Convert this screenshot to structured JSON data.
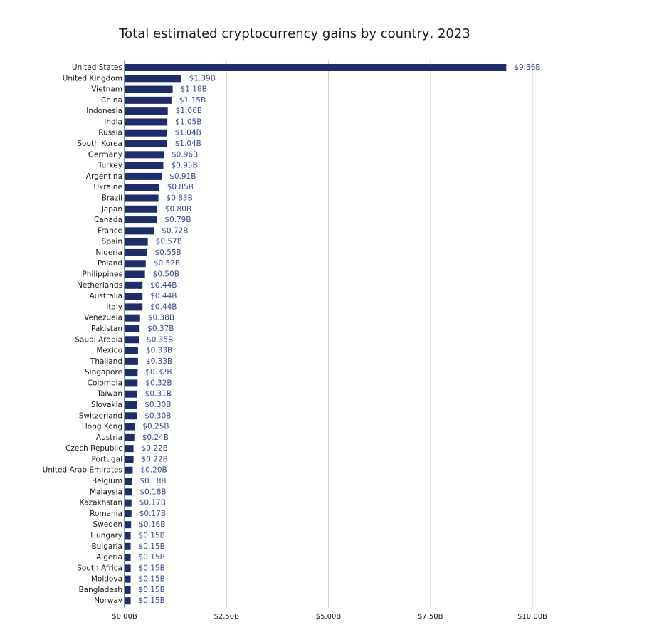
{
  "chart_data": {
    "type": "bar",
    "orientation": "horizontal",
    "title": "Total estimated cryptocurrency gains by country, 2023",
    "categories": [
      "United States",
      "United Kingdom",
      "Vietnam",
      "China",
      "Indonesia",
      "India",
      "Russia",
      "South Korea",
      "Germany",
      "Turkey",
      "Argentina",
      "Ukraine",
      "Brazil",
      "Japan",
      "Canada",
      "France",
      "Spain",
      "Nigeria",
      "Poland",
      "Philippines",
      "Netherlands",
      "Australia",
      "Italy",
      "Venezuela",
      "Pakistan",
      "Saudi Arabia",
      "Mexico",
      "Thailand",
      "Singapore",
      "Colombia",
      "Taiwan",
      "Slovakia",
      "Switzerland",
      "Hong Kong",
      "Austria",
      "Czech Republic",
      "Portugal",
      "United Arab Emirates",
      "Belgium",
      "Malaysia",
      "Kazakhstan",
      "Romania",
      "Sweden",
      "Hungary",
      "Bulgaria",
      "Algeria",
      "South Africa",
      "Moldova",
      "Bangladesh",
      "Norway"
    ],
    "values": [
      9.36,
      1.39,
      1.18,
      1.15,
      1.06,
      1.05,
      1.04,
      1.04,
      0.96,
      0.95,
      0.91,
      0.85,
      0.83,
      0.8,
      0.79,
      0.72,
      0.57,
      0.55,
      0.52,
      0.5,
      0.44,
      0.44,
      0.44,
      0.38,
      0.37,
      0.35,
      0.33,
      0.33,
      0.32,
      0.32,
      0.31,
      0.3,
      0.3,
      0.25,
      0.24,
      0.22,
      0.22,
      0.2,
      0.18,
      0.18,
      0.17,
      0.17,
      0.16,
      0.15,
      0.15,
      0.15,
      0.15,
      0.15,
      0.15,
      0.15
    ],
    "value_labels": [
      "$9.36B",
      "$1.39B",
      "$1.18B",
      "$1.15B",
      "$1.06B",
      "$1.05B",
      "$1.04B",
      "$1.04B",
      "$0.96B",
      "$0.95B",
      "$0.91B",
      "$0.85B",
      "$0.83B",
      "$0.80B",
      "$0.79B",
      "$0.72B",
      "$0.57B",
      "$0.55B",
      "$0.52B",
      "$0.50B",
      "$0.44B",
      "$0.44B",
      "$0.44B",
      "$0.38B",
      "$0.37B",
      "$0.35B",
      "$0.33B",
      "$0.33B",
      "$0.32B",
      "$0.32B",
      "$0.31B",
      "$0.30B",
      "$0.30B",
      "$0.25B",
      "$0.24B",
      "$0.22B",
      "$0.22B",
      "$0.20B",
      "$0.18B",
      "$0.18B",
      "$0.17B",
      "$0.17B",
      "$0.16B",
      "$0.15B",
      "$0.15B",
      "$0.15B",
      "$0.15B",
      "$0.15B",
      "$0.15B",
      "$0.15B"
    ],
    "color": "#1f2d6b",
    "xlim": [
      0,
      10
    ],
    "xticks": [
      {
        "value": 0,
        "label": "$0.00B"
      },
      {
        "value": 2.5,
        "label": "$2.50B"
      },
      {
        "value": 5,
        "label": "$5.00B"
      },
      {
        "value": 7.5,
        "label": "$7.50B"
      },
      {
        "value": 10,
        "label": "$10.00B"
      }
    ],
    "grid": true
  }
}
